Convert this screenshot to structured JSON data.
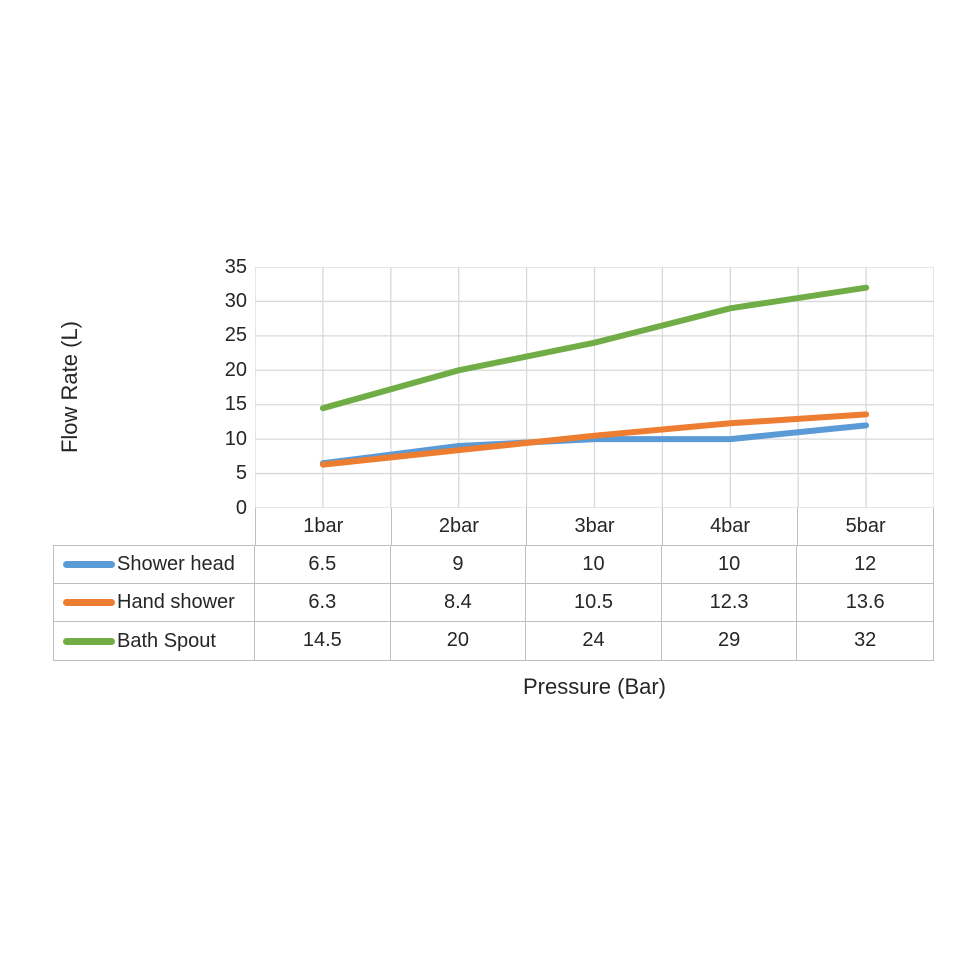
{
  "chart_data": {
    "type": "line",
    "categories": [
      "1bar",
      "2bar",
      "3bar",
      "4bar",
      "5bar"
    ],
    "series": [
      {
        "name": "Shower head",
        "color": "#5B9BD5",
        "values": [
          6.5,
          9,
          10,
          10,
          12
        ]
      },
      {
        "name": "Hand shower",
        "color": "#ED7D31",
        "values": [
          6.3,
          8.4,
          10.5,
          12.3,
          13.6
        ]
      },
      {
        "name": "Bath Spout",
        "color": "#70AD47",
        "values": [
          14.5,
          20,
          24,
          29,
          32
        ]
      }
    ],
    "xlabel": "Pressure (Bar)",
    "ylabel": "Flow Rate (L)",
    "ylim": [
      0,
      35
    ],
    "yticks": [
      0,
      5,
      10,
      15,
      20,
      25,
      30,
      35
    ],
    "grid": true,
    "legend_position": "table-left",
    "gridline_color": "#D9D9D9",
    "table_border_color": "#BFBFBF",
    "text_color": "#262626",
    "background_color": "#FFFFFF"
  }
}
